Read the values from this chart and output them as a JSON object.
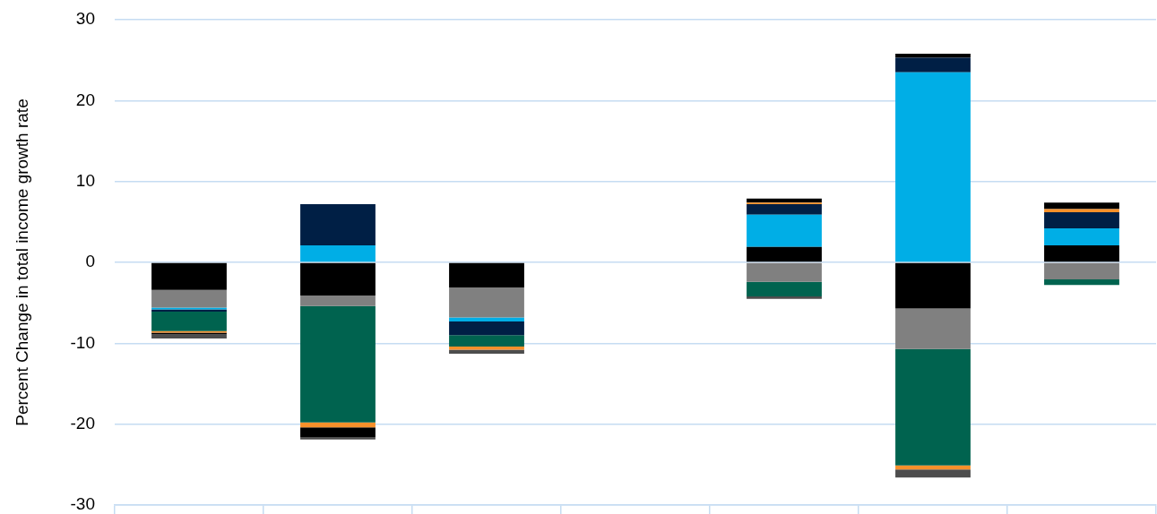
{
  "chart_data": {
    "type": "bar",
    "stacked": true,
    "categories": [
      null,
      null,
      null,
      null,
      null,
      null,
      null
    ],
    "ylabel": "Percent Change in total income growth rate",
    "ylim": [
      -30,
      30
    ],
    "yticks": [
      -30,
      -20,
      -10,
      0,
      10,
      20,
      30
    ],
    "grid": "y",
    "tick_labels": "y",
    "series": [
      {
        "color": "#000000",
        "values": [
          -3.4,
          -4.1,
          -3.1,
          null,
          1.9,
          -5.7,
          2.1
        ]
      },
      {
        "color": "#808080",
        "values": [
          -2.2,
          -1.3,
          -3.7,
          null,
          -2.4,
          -5.0,
          -2.1
        ]
      },
      {
        "color": "#00aee6",
        "values": [
          -0.2,
          2.1,
          -0.5,
          null,
          4.0,
          23.5,
          2.1
        ]
      },
      {
        "color": "#001f45",
        "values": [
          -0.3,
          5.1,
          -1.7,
          null,
          1.3,
          1.8,
          2.0
        ]
      },
      {
        "color": "#00634f",
        "values": [
          -2.4,
          -14.4,
          -1.4,
          null,
          -1.8,
          -14.4,
          -0.7
        ]
      },
      {
        "color": "#f7902a",
        "values": [
          -0.2,
          -0.6,
          -0.4,
          null,
          0.2,
          -0.5,
          0.4
        ]
      },
      {
        "color": "#000000",
        "values": [
          -0.2,
          -1.2,
          null,
          null,
          0.5,
          0.5,
          0.8
        ]
      },
      {
        "color": "#4d4d4d",
        "values": [
          -0.5,
          -0.3,
          -0.5,
          null,
          -0.3,
          -1.0,
          null
        ]
      }
    ]
  }
}
